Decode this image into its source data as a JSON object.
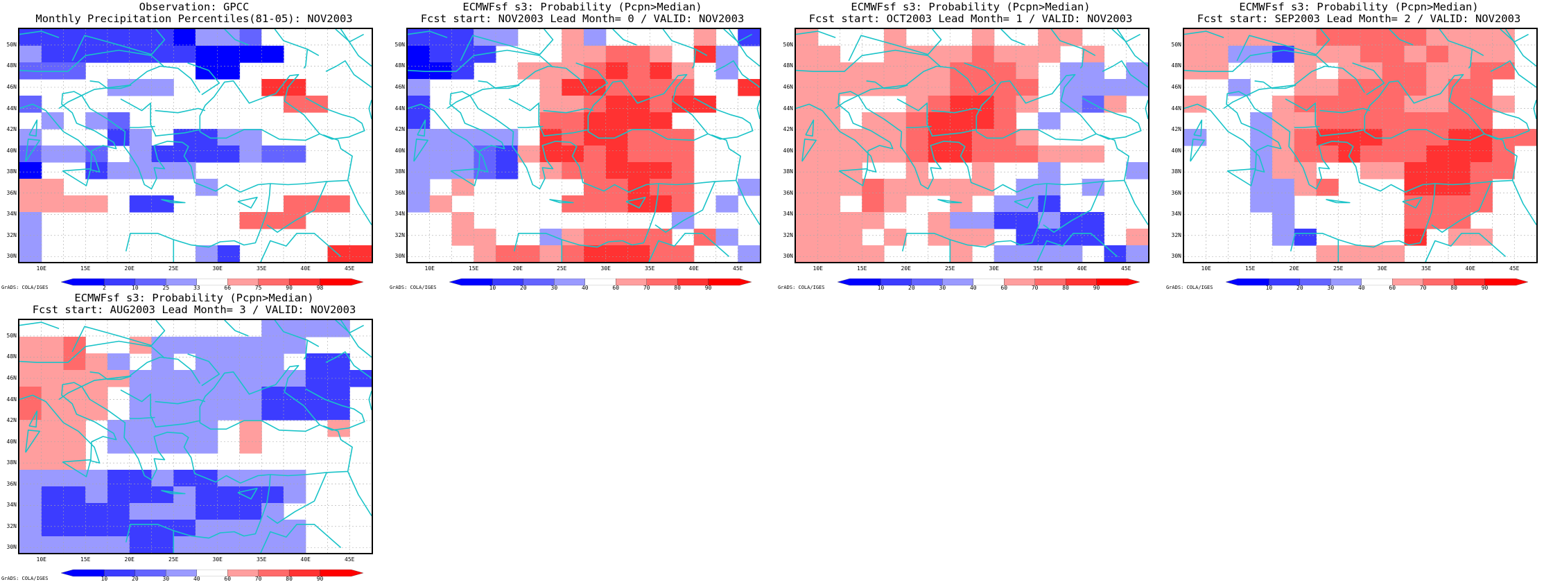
{
  "lat_labels": [
    "30N",
    "32N",
    "34N",
    "36N",
    "38N",
    "40N",
    "42N",
    "44N",
    "46N",
    "48N",
    "50N"
  ],
  "lon_labels": [
    "10E",
    "15E",
    "20E",
    "25E",
    "30E",
    "35E",
    "40E",
    "45E"
  ],
  "credit": "GrADS: COLA/IGES",
  "colors": {
    "coast": "#19c3c8",
    "grid": "#a8a8a8",
    "border": "#000000"
  },
  "panels": [
    {
      "title1": "Observation: GPCC",
      "title2": "Monthly Precipitation Percentiles(81-05): NOV2003",
      "cbar": {
        "labels": [
          "2",
          "10",
          "25",
          "33",
          "66",
          "75",
          "90",
          "98"
        ],
        "colors": [
          "#0000ff",
          "#3c3cff",
          "#6464ff",
          "#9a9aff",
          "#ffffff",
          "#ff9e9e",
          "#ff6a6a",
          "#ff3232",
          "#ff0000"
        ]
      },
      "grid_rows": [
        "222222213340...",
        "322222221111....",
        "444.....11.....",
        "....333....RR...",
        "4...........QQ..",
        ".3.34..........",
        "3...C3.CC33.....",
        "4334.3CC22344...",
        "D..23333.......",
        "PP......3.....",
        "PPPP.22.....QQQ",
        "3.........QQQ.",
        "3..............",
        "3.......32....RR"
      ]
    },
    {
      "title1": "ECMWFsf s3: Probability (Pcpn>Median)",
      "title2": "Fcst start: NOV2003  Lead Month= 0 / VALID: NOV2003",
      "cbar": {
        "labels": [
          "10",
          "20",
          "30",
          "40",
          "60",
          "70",
          "80",
          "90"
        ],
        "colors": [
          "#0000ff",
          "#3c3cff",
          "#6464ff",
          "#9a9aff",
          "#ffffff",
          "#ff9e9e",
          "#ff6a6a",
          "#ff3232",
          "#ff0000"
        ]
      },
      "grid_rows": [
        "22233..P3....P.2",
        "1222...PPQQP.R3.",
        "112..PPPQRQRP.3.",
        "3.....PRRQQQQ..RR",
        "2.....PPQRRQRR.....",
        "2.....QQRRRR.....",
        "33333.RQRRQQQ..",
        "33342PRRQRQQQ...",
        "33342.PQQRRRQ..",
        "3.P.....QQRQQ..3",
        "3P.....QQQRRQ.3",
        "..P.........3.",
        "..PP..3PQQQQ.Q3",
        "...PQQPQRRRQQ..3"
      ]
    },
    {
      "title1": "ECMWFsf s3: Probability (Pcpn>Median)",
      "title2": "Fcst start: OCT2003  Lead Month= 1 / VALID: NOV2003",
      "cbar": {
        "labels": [
          "10",
          "20",
          "30",
          "40",
          "60",
          "70",
          "80",
          "90"
        ],
        "colors": [
          "#0000ff",
          "#3c3cff",
          "#6464ff",
          "#9a9aff",
          "#ffffff",
          "#ff9e9e",
          "#ff6a6a",
          "#ff3232",
          "#ff0000"
        ]
      },
      "grid_rows": [
        "P...P...P..PP....3",
        "PP..PPPPQPPP.P..2",
        "PPPPPPPQQQP.33.3",
        "PPPPPPPQQQQ.33333",
        "PP...PQRRQP.34P..",
        "PP.PPQRRRQ.3...",
        "PPPPPQRRQQP....",
        "PPPPPQRRQQQPPP.",
        "PPP..P..P..3...3",
        "PPPQPPPPP.33.3.",
        "PP.QP..P.332...",
        "PPPP..P3322322..",
        "PPP.P.PPP.2222.PP",
        "PPPP...P.3333.23.P"
      ]
    },
    {
      "title1": "ECMWFsf s3: Probability (Pcpn>Median)",
      "title2": "Fcst start: SEP2003  Lead Month= 2 / VALID: NOV2003",
      "cbar": {
        "labels": [
          "10",
          "20",
          "30",
          "40",
          "60",
          "70",
          "80",
          "90"
        ],
        "colors": [
          "#0000ff",
          "#3c3cff",
          "#6464ff",
          "#9a9aff",
          "#ffffff",
          "#ff9e9e",
          "#ff6a6a",
          "#ff3232",
          "#ff0000"
        ]
      },
      "grid_rows": [
        "PPPPPPQQQQQPPPP",
        "PP332PPPQQPQPPP.",
        "PP...P.PPQQPPQQ.",
        "..3..PPQQQQPQQ.",
        "P...PQQQQQPPQQP.",
        "...3PPQQQQQQQQ.",
        "3..3PQRRRQQQRRQQ",
        "...3PQQRQQQRRRQ",
        "...3PP..PPRRRQQ",
        "...33PQ...RRRQ.",
        "...33.....QQQQ.",
        "....3.....QQQ.",
        "....32....R.PP.",
        "......PPPP...."
      ]
    },
    {
      "title1": "ECMWFsf s3: Probability (Pcpn>Median)",
      "title2": "Fcst start: AUG2003  Lead Month= 3 / VALID: NOV2003",
      "cbar": {
        "labels": [
          "10",
          "20",
          "30",
          "40",
          "60",
          "70",
          "80",
          "90"
        ],
        "colors": [
          "#0000ff",
          "#3c3cff",
          "#6464ff",
          "#9a9aff",
          "#ffffff",
          "#ff9e9e",
          "#ff6a6a",
          "#ff3232",
          "#ff0000"
        ]
      },
      "grid_rows": [
        "...........3333",
        "PPQ..P3333333.",
        "PPQP3.3.3333.22",
        "PPPPP33333333222",
        "QPPP.3333332222",
        "QPPP.3333332222",
        "PPP.33333.P...P",
        "PPP.33333.P...",
        "PPP...........",
        "3333223223333",
        "3223222322223",
        "322223332223.",
        "3222222233333",
        "3333322333333"
      ]
    }
  ]
}
